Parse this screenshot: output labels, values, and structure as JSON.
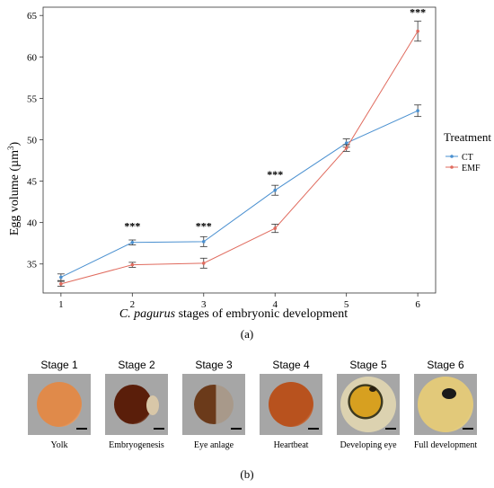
{
  "chart_data": {
    "type": "line",
    "xlabel_italic": "C. pagurus",
    "xlabel_rest": " stages of embryonic development",
    "ylabel_main": "Egg volume (µm",
    "ylabel_sup": "3",
    "ylabel_close": ")",
    "x": [
      1,
      2,
      3,
      4,
      5,
      6
    ],
    "xticks": [
      "1",
      "2",
      "3",
      "4",
      "5",
      "6"
    ],
    "ylim": [
      31.5,
      66
    ],
    "yticks": [
      35,
      40,
      45,
      50,
      55,
      60,
      65
    ],
    "legend_title": "Treatment",
    "legend_position": "right",
    "series": [
      {
        "name": "CT",
        "color": "#4a90d0",
        "values": [
          33.4,
          37.6,
          37.7,
          43.9,
          49.6,
          53.5
        ],
        "errors": [
          0.4,
          0.3,
          0.6,
          0.6,
          0.5,
          0.7
        ]
      },
      {
        "name": "EMF",
        "color": "#e06b5e",
        "values": [
          32.6,
          34.9,
          35.1,
          39.3,
          49.0,
          63.1
        ],
        "errors": [
          0.3,
          0.3,
          0.6,
          0.5,
          0.4,
          1.2
        ]
      }
    ],
    "annotations": [
      {
        "x": 2,
        "y": 39.6,
        "text": "***"
      },
      {
        "x": 3,
        "y": 39.6,
        "text": "***"
      },
      {
        "x": 4,
        "y": 45.8,
        "text": "***"
      },
      {
        "x": 6,
        "y": 65.4,
        "text": "***"
      }
    ]
  },
  "panel_a_label": "(a)",
  "panel_b_label": "(b)",
  "stages": [
    {
      "title": "Stage 1",
      "caption": "Yolk"
    },
    {
      "title": "Stage 2",
      "caption": "Embryogenesis"
    },
    {
      "title": "Stage 3",
      "caption": "Eye anlage"
    },
    {
      "title": "Stage 4",
      "caption": "Heartbeat"
    },
    {
      "title": "Stage 5",
      "caption": "Developing eye"
    },
    {
      "title": "Stage 6",
      "caption": "Full development"
    }
  ],
  "colors": {
    "photo_bg": "#a6a6a6",
    "egg_stage1": "#e08a4a",
    "egg_stage2": "#5a1e0a",
    "egg_stage3": "#6b3a1a",
    "egg_stage4": "#b8521e",
    "egg_stage5": "#d7a020",
    "egg_stage6": "#e2c97a"
  }
}
